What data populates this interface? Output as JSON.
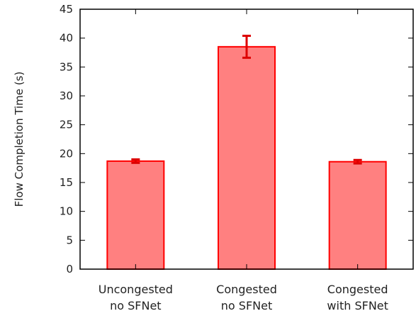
{
  "chart_data": {
    "type": "bar",
    "categories": [
      [
        "Uncongested",
        "no SFNet"
      ],
      [
        "Congested",
        "no SFNet"
      ],
      [
        "Congested",
        "with SFNet"
      ]
    ],
    "values": [
      18.7,
      38.5,
      18.6
    ],
    "error_low": [
      18.4,
      36.6,
      18.3
    ],
    "error_high": [
      19.0,
      40.4,
      18.9
    ],
    "title": "",
    "xlabel": "",
    "ylabel": "Flow Completion Time (s)",
    "ylim": [
      0,
      45
    ],
    "yticks": [
      0,
      5,
      10,
      15,
      20,
      25,
      30,
      35,
      40,
      45
    ],
    "grid": false,
    "legend": "none",
    "colors": {
      "bar_fill": "#ff8080",
      "bar_stroke": "#ff0000",
      "error_bar": "#dd0000",
      "axis": "#000000"
    }
  }
}
